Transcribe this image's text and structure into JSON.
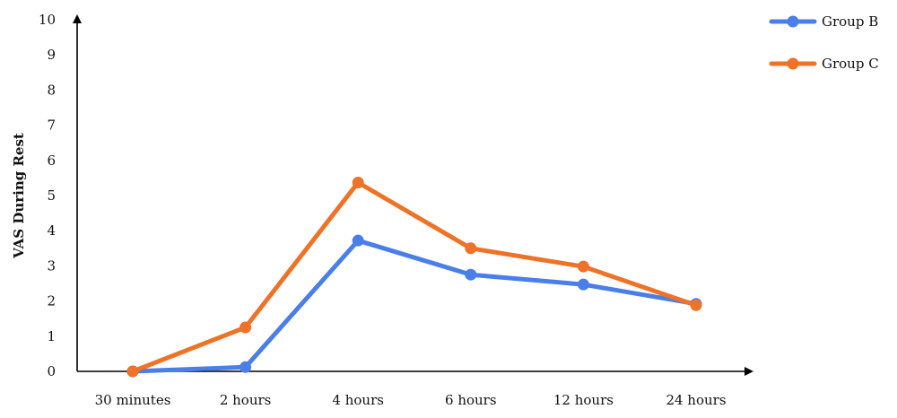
{
  "chart_data": {
    "type": "line",
    "title": "",
    "xlabel": "",
    "ylabel": "VAS During Rest",
    "categories": [
      "30 minutes",
      "2 hours",
      "4 hours",
      "6 hours",
      "12 hours",
      "24 hours"
    ],
    "ylim": [
      0,
      10
    ],
    "yticks": [
      0,
      1,
      2,
      3,
      4,
      5,
      6,
      7,
      8,
      9,
      10
    ],
    "grid": false,
    "legend_position": "top-right",
    "series": [
      {
        "name": "Group B",
        "color": "#4A7EE8",
        "values": [
          0.0,
          0.12,
          3.72,
          2.75,
          2.47,
          1.92
        ]
      },
      {
        "name": "Group C",
        "color": "#EE7227",
        "values": [
          0.0,
          1.25,
          5.37,
          3.5,
          2.98,
          1.88
        ]
      }
    ]
  }
}
